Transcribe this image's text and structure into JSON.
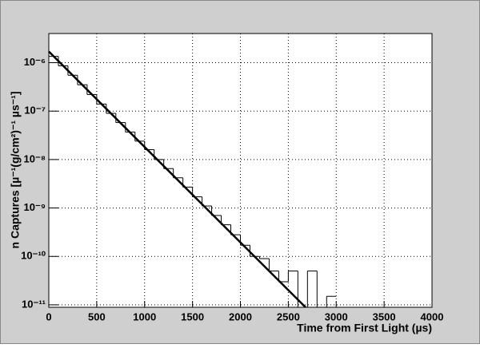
{
  "chart_data": {
    "type": "histogram",
    "x_label": "Time from First Light (µs)",
    "y_label": "n Captures [µ⁻¹(g/cm²)⁻¹ µs⁻¹]",
    "bins": [
      0,
      100,
      200,
      300,
      400,
      500,
      600,
      700,
      800,
      900,
      1000,
      1100,
      1200,
      1300,
      1400,
      1500,
      1600,
      1700,
      1800,
      1900,
      2000,
      2100,
      2200,
      2300,
      2400,
      2500,
      2600,
      2700,
      2800,
      2900,
      3000
    ],
    "values": [
      1.35e-06,
      8.6e-07,
      5.5e-07,
      3.5e-07,
      2.2e-07,
      1.4e-07,
      9e-08,
      5.8e-08,
      3.7e-08,
      2.4e-08,
      1.6e-08,
      1e-08,
      6.5e-09,
      4.2e-09,
      2.7e-09,
      1.7e-09,
      1.1e-09,
      7e-10,
      4.5e-10,
      2.8e-10,
      1.7e-10,
      1e-10,
      9e-11,
      5e-11,
      3e-11,
      5e-11,
      0,
      5e-11,
      0,
      1.5e-11
    ],
    "color": "#000000",
    "fit": {
      "x": [
        0,
        2680
      ],
      "values": [
        1.7e-06,
        8.9e-12
      ],
      "color": "#000000"
    },
    "xlim": [
      0,
      4000
    ],
    "xticks": [
      0,
      500,
      1000,
      1500,
      2000,
      2500,
      3000,
      3500,
      4000
    ],
    "ylim": [
      8.9e-12,
      4e-06
    ],
    "yticks": [
      {
        "value": 1e-11,
        "label": "10⁻¹¹"
      },
      {
        "value": 1e-10,
        "label": "10⁻¹⁰"
      },
      {
        "value": 1e-09,
        "label": "10⁻⁹"
      },
      {
        "value": 1e-08,
        "label": "10⁻⁸"
      },
      {
        "value": 1e-07,
        "label": "10⁻⁷"
      },
      {
        "value": 1e-06,
        "label": "10⁻⁶"
      }
    ],
    "log_y": true,
    "grid": true
  }
}
